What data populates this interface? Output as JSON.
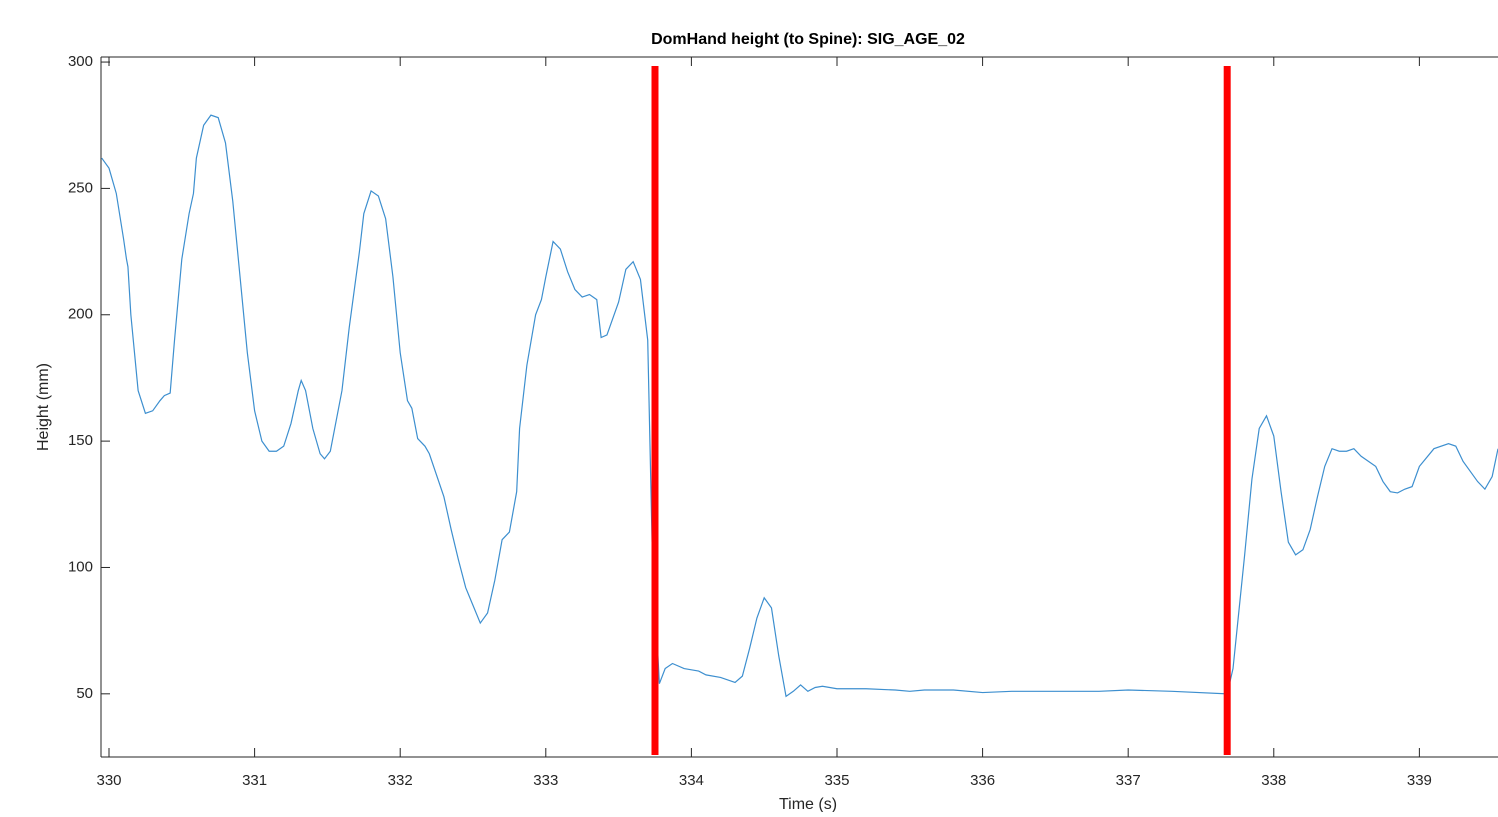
{
  "chart_data": {
    "type": "line",
    "title": "DomHand height (to Spine): SIG_AGE_02",
    "x_label": "Time (s)",
    "y_label": "Height (mm)",
    "x": [
      329.95,
      330.0,
      330.05,
      330.1,
      330.12,
      330.13,
      330.15,
      330.2,
      330.25,
      330.3,
      330.35,
      330.38,
      330.42,
      330.45,
      330.5,
      330.55,
      330.58,
      330.6,
      330.65,
      330.7,
      330.75,
      330.8,
      330.85,
      330.9,
      330.95,
      331.0,
      331.05,
      331.1,
      331.15,
      331.2,
      331.25,
      331.3,
      331.32,
      331.35,
      331.4,
      331.45,
      331.48,
      331.52,
      331.6,
      331.65,
      331.72,
      331.75,
      331.8,
      331.85,
      331.9,
      331.95,
      332.0,
      332.05,
      332.08,
      332.12,
      332.17,
      332.2,
      332.3,
      332.35,
      332.4,
      332.45,
      332.5,
      332.55,
      332.6,
      332.65,
      332.7,
      332.75,
      332.8,
      332.82,
      332.87,
      332.93,
      332.97,
      333.0,
      333.05,
      333.1,
      333.15,
      333.2,
      333.25,
      333.3,
      333.35,
      333.38,
      333.42,
      333.5,
      333.55,
      333.6,
      333.65,
      333.7,
      333.73,
      333.75,
      333.78,
      333.82,
      333.87,
      333.95,
      334.0,
      334.05,
      334.1,
      334.2,
      334.3,
      334.35,
      334.4,
      334.45,
      334.5,
      334.55,
      334.6,
      334.65,
      334.7,
      334.75,
      334.8,
      334.85,
      334.9,
      334.95,
      335.0,
      335.2,
      335.4,
      335.5,
      335.6,
      335.8,
      336.0,
      336.2,
      336.5,
      336.8,
      337.0,
      337.3,
      337.68,
      337.72,
      337.8,
      337.85,
      337.9,
      337.95,
      338.0,
      338.05,
      338.1,
      338.15,
      338.2,
      338.25,
      338.3,
      338.35,
      338.4,
      338.45,
      338.5,
      338.55,
      338.6,
      338.7,
      338.75,
      338.8,
      338.85,
      338.9,
      338.95,
      339.0,
      339.1,
      339.2,
      339.25,
      339.3,
      339.4,
      339.45,
      339.5,
      339.54
    ],
    "series": [
      {
        "color": "#3d8fcf",
        "values": [
          262,
          258,
          248,
          230,
          222,
          219,
          200,
          170,
          161,
          162,
          166,
          168,
          169,
          190,
          222,
          240,
          248,
          262,
          275,
          279,
          278,
          268,
          245,
          215,
          185,
          162,
          150,
          146,
          146,
          148,
          157,
          170,
          174,
          170,
          155,
          145,
          143,
          146,
          170,
          195,
          225,
          240,
          249,
          247,
          238,
          215,
          185,
          166,
          163,
          151,
          148,
          145,
          128,
          115,
          103,
          92,
          85,
          78,
          82,
          95,
          111,
          114,
          130,
          155,
          180,
          200,
          206,
          215,
          229,
          226,
          217,
          210,
          207,
          208,
          206,
          191,
          192,
          205,
          218,
          221,
          214,
          190,
          110,
          88,
          54,
          60,
          62,
          60,
          59.5,
          59,
          57.5,
          56.5,
          54.5,
          57,
          68,
          80,
          88,
          84,
          65,
          49,
          51,
          53.5,
          51,
          52.5,
          53,
          52.5,
          52,
          52,
          51.5,
          51,
          51.5,
          51.5,
          50.5,
          51,
          51,
          51,
          51.5,
          51,
          50,
          60,
          105,
          135,
          155,
          160,
          152,
          130,
          110,
          105,
          107,
          115,
          128,
          140,
          147,
          146,
          146,
          147,
          144,
          140,
          134,
          130,
          129.5,
          131,
          132,
          140,
          147,
          149,
          148,
          142,
          134,
          131,
          136,
          147
        ]
      }
    ],
    "markers": [
      {
        "x": 333.75,
        "color": "#ff0000"
      },
      {
        "x": 337.68,
        "color": "#ff0000"
      }
    ],
    "xlim": [
      329.945,
      339.54
    ],
    "ylim": [
      25,
      302
    ],
    "xticks": [
      330,
      331,
      332,
      333,
      334,
      335,
      336,
      337,
      338,
      339
    ],
    "yticks": [
      50,
      100,
      150,
      200,
      250,
      300
    ]
  }
}
